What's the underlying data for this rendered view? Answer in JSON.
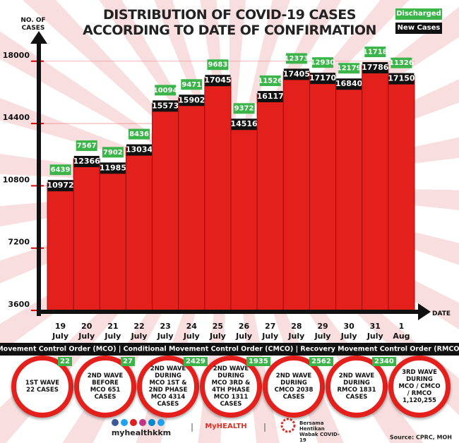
{
  "chart_data": {
    "type": "bar",
    "title": "DISTRIBUTION OF COVID-19 CASES",
    "subtitle": "ACCORDING TO DATE OF CONFIRMATION",
    "ylabel": "NO. OF CASES",
    "xlabel": "DATE",
    "categories": [
      "19 July",
      "20 July",
      "21 July",
      "22 July",
      "23 July",
      "24 July",
      "25 July",
      "26 July",
      "27 July",
      "28 July",
      "29 July",
      "30 July",
      "31 July",
      "1 Aug"
    ],
    "series": [
      {
        "name": "New Cases",
        "color": "#111111",
        "values": [
          10972,
          12366,
          11985,
          13034,
          15573,
          15902,
          17045,
          14516,
          16117,
          17405,
          17170,
          16840,
          17786,
          17150
        ]
      },
      {
        "name": "Discharged",
        "color": "#3bb54a",
        "values": [
          6439,
          7567,
          7902,
          8436,
          10094,
          9471,
          9683,
          9372,
          11526,
          12373,
          12930,
          12179,
          11718,
          11326
        ]
      }
    ],
    "bar_color": "#e3201b",
    "ylim": [
      3600,
      19500
    ],
    "yticks": [
      3600,
      7200,
      10800,
      14400,
      18000
    ],
    "grid": true
  },
  "banner": "Movement Control Order (MCO) | Conditional Movement Control Order (CMCO) | Recovery Movement Control Order (RMCO)",
  "waves": [
    {
      "text": "1ST WAVE 22 CASES",
      "badge": "22"
    },
    {
      "text": "2ND WAVE BEFORE MCO 651 CASES",
      "badge": "27"
    },
    {
      "text": "2ND WAVE DURING MCO 1ST & 2ND PHASE MCO 4314 CASES",
      "badge": "2429"
    },
    {
      "text": "2ND WAVE DURING MCO 3RD & 4TH PHASE MCO 1311 CASES",
      "badge": "1935"
    },
    {
      "text": "2ND WAVE DURING CMCO 2038 CASES",
      "badge": "2562"
    },
    {
      "text": "2ND WAVE DURING RMCO 1831 CASES",
      "badge": "2340"
    },
    {
      "text": "3RD WAVE DURING MCO / CMCO / RMCO 1,120,255"
    }
  ],
  "footer": {
    "handle": "myhealthkkm",
    "logo": "MyHEALTH",
    "campaign": "Bersama Hentikan Wabak COVID-19",
    "source": "Source: CPRC, MOH"
  }
}
